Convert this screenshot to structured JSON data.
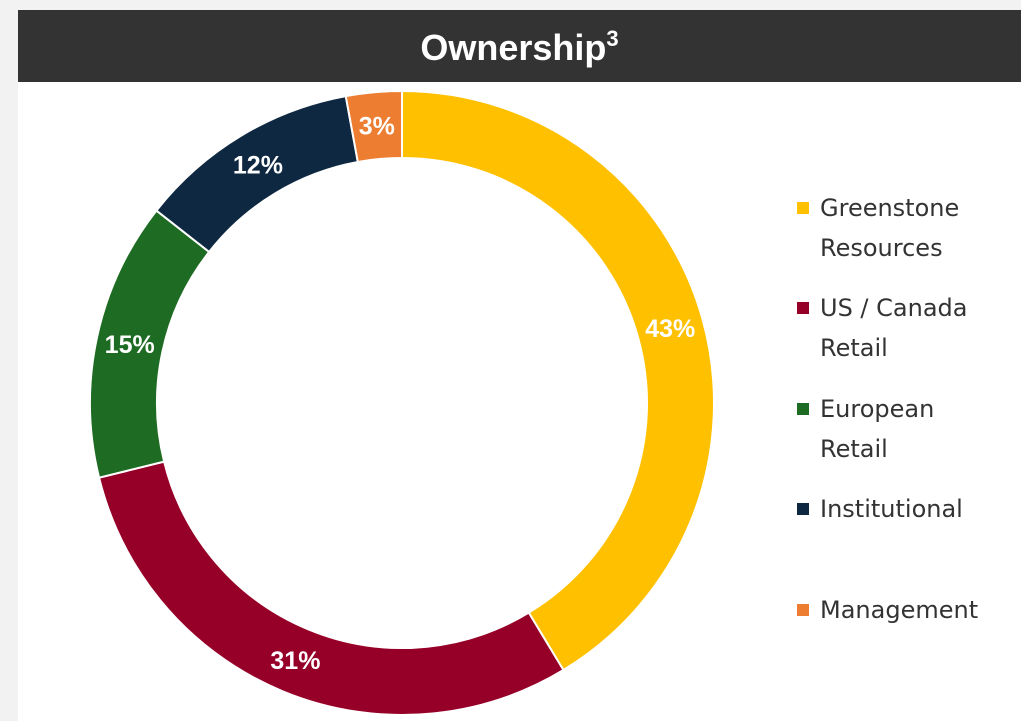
{
  "chart_data": {
    "type": "donut",
    "title": "Ownership",
    "title_superscript": "3",
    "categories": [
      "Greenstone Resources",
      "US / Canada Retail",
      "European Retail",
      "Institutional",
      "Management"
    ],
    "values": [
      43,
      31,
      15,
      12,
      3
    ],
    "value_labels": [
      "43%",
      "31%",
      "15%",
      "12%",
      "3%"
    ],
    "colors": [
      "#ffc000",
      "#960028",
      "#1e6b23",
      "#0e2841",
      "#ed7d31"
    ],
    "legend": "right"
  }
}
